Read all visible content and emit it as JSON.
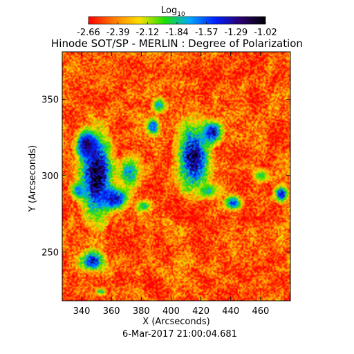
{
  "chart_data": {
    "type": "heatmap",
    "title": "Hinode SOT/SP - MERLIN : Degree of Polarization",
    "xlabel": "X (Arcseconds)",
    "ylabel": "Y (Arcseconds)",
    "xlim": [
      327,
      480
    ],
    "ylim": [
      218,
      381
    ],
    "x_ticks": [
      340,
      360,
      380,
      400,
      420,
      440,
      460
    ],
    "y_ticks": [
      250,
      300,
      350
    ],
    "timestamp": "6-Mar-2017 21:00:04.681",
    "colorbar": {
      "label_main": "Log",
      "label_sub": "10",
      "min": -2.66,
      "max": -1.02,
      "tick_labels": [
        "-2.66",
        "-2.39",
        "-2.12",
        "-1.84",
        "-1.57",
        "-1.29",
        "-1.02"
      ],
      "colors": [
        "#ff0000",
        "#ff7a00",
        "#ffe000",
        "#20e000",
        "#00a8ff",
        "#0020ff",
        "#2a0070",
        "#000000"
      ]
    },
    "background_log_value": -2.5,
    "features": [
      {
        "x": 350,
        "y": 300,
        "rx": 12,
        "ry": 30,
        "value": -1.1
      },
      {
        "x": 343,
        "y": 320,
        "rx": 8,
        "ry": 10,
        "value": -1.2
      },
      {
        "x": 362,
        "y": 285,
        "rx": 10,
        "ry": 8,
        "value": -1.3
      },
      {
        "x": 338,
        "y": 290,
        "rx": 6,
        "ry": 6,
        "value": -1.6
      },
      {
        "x": 415,
        "y": 312,
        "rx": 12,
        "ry": 24,
        "value": -1.2
      },
      {
        "x": 428,
        "y": 328,
        "rx": 7,
        "ry": 8,
        "value": -1.3
      },
      {
        "x": 442,
        "y": 282,
        "rx": 6,
        "ry": 5,
        "value": -1.5
      },
      {
        "x": 388,
        "y": 332,
        "rx": 5,
        "ry": 6,
        "value": -1.5
      },
      {
        "x": 392,
        "y": 346,
        "rx": 5,
        "ry": 5,
        "value": -1.7
      },
      {
        "x": 372,
        "y": 302,
        "rx": 9,
        "ry": 12,
        "value": -1.7
      },
      {
        "x": 347,
        "y": 244,
        "rx": 9,
        "ry": 7,
        "value": -1.4
      },
      {
        "x": 382,
        "y": 280,
        "rx": 6,
        "ry": 4,
        "value": -1.8
      },
      {
        "x": 474,
        "y": 288,
        "rx": 5,
        "ry": 6,
        "value": -1.4
      },
      {
        "x": 353,
        "y": 224,
        "rx": 4,
        "ry": 3,
        "value": -1.8
      },
      {
        "x": 460,
        "y": 300,
        "rx": 6,
        "ry": 5,
        "value": -1.9
      },
      {
        "x": 425,
        "y": 290,
        "rx": 8,
        "ry": 6,
        "value": -1.8
      }
    ]
  }
}
